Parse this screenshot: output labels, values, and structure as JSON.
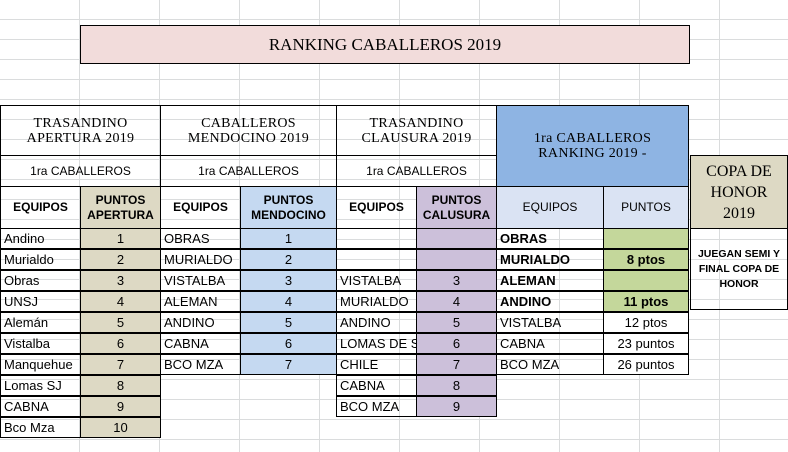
{
  "title": "RANKING CABALLEROS 2019",
  "t1": {
    "header": "TRASANDINO APERTURA 2019",
    "sub": "1ra CABALLEROS",
    "col_team": "EQUIPOS",
    "col_pts": "PUNTOS APERTURA",
    "rows": [
      {
        "team": "Andino",
        "pts": "1"
      },
      {
        "team": "Murialdo",
        "pts": "2"
      },
      {
        "team": "Obras",
        "pts": "3"
      },
      {
        "team": "UNSJ",
        "pts": "4"
      },
      {
        "team": "Alemán",
        "pts": "5"
      },
      {
        "team": "Vistalba",
        "pts": "6"
      },
      {
        "team": "Manquehue",
        "pts": "7"
      },
      {
        "team": "Lomas SJ",
        "pts": "8"
      },
      {
        "team": "CABNA",
        "pts": "9"
      },
      {
        "team": "Bco Mza",
        "pts": "10"
      }
    ]
  },
  "t2": {
    "header": "CABALLEROS MENDOCINO 2019",
    "sub": "1ra CABALLEROS",
    "col_team": "EQUIPOS",
    "col_pts": "PUNTOS MENDOCINO",
    "rows": [
      {
        "team": "OBRAS",
        "pts": "1"
      },
      {
        "team": "MURIALDO",
        "pts": "2"
      },
      {
        "team": "VISTALBA",
        "pts": "3"
      },
      {
        "team": "ALEMAN",
        "pts": "4"
      },
      {
        "team": "ANDINO",
        "pts": "5"
      },
      {
        "team": "CABNA",
        "pts": "6"
      },
      {
        "team": "BCO MZA",
        "pts": "7"
      }
    ]
  },
  "t3": {
    "header": "TRASANDINO CLAUSURA 2019",
    "sub": "1ra CABALLEROS",
    "col_team": "EQUIPOS",
    "col_pts": "PUNTOS CALUSURA",
    "rows": [
      {
        "team": "",
        "pts": ""
      },
      {
        "team": "",
        "pts": ""
      },
      {
        "team": "VISTALBA",
        "pts": "3"
      },
      {
        "team": "MURIALDO",
        "pts": "4"
      },
      {
        "team": "ANDINO",
        "pts": "5"
      },
      {
        "team": "LOMAS DE SJ",
        "pts": "6"
      },
      {
        "team": "CHILE",
        "pts": "7"
      },
      {
        "team": "CABNA",
        "pts": "8"
      },
      {
        "team": "BCO MZA",
        "pts": "9"
      }
    ]
  },
  "t4": {
    "header": "1ra CABALLEROS RANKING  2019 -",
    "col_team": "EQUIPOS",
    "col_pts": "PUNTOS",
    "rows": [
      {
        "team": "OBRAS",
        "pts": ""
      },
      {
        "team": "MURIALDO",
        "pts": "8 ptos"
      },
      {
        "team": "ALEMAN",
        "pts": ""
      },
      {
        "team": "ANDINO",
        "pts": "11 ptos"
      },
      {
        "team": "VISTALBA",
        "pts": "12 ptos"
      },
      {
        "team": "CABNA",
        "pts": "23 puntos"
      },
      {
        "team": "BCO MZA",
        "pts": "26 puntos"
      }
    ]
  },
  "copa": {
    "header": "COPA DE HONOR 2019",
    "note": "JUEGAN SEMI Y FINAL COPA DE HONOR"
  }
}
